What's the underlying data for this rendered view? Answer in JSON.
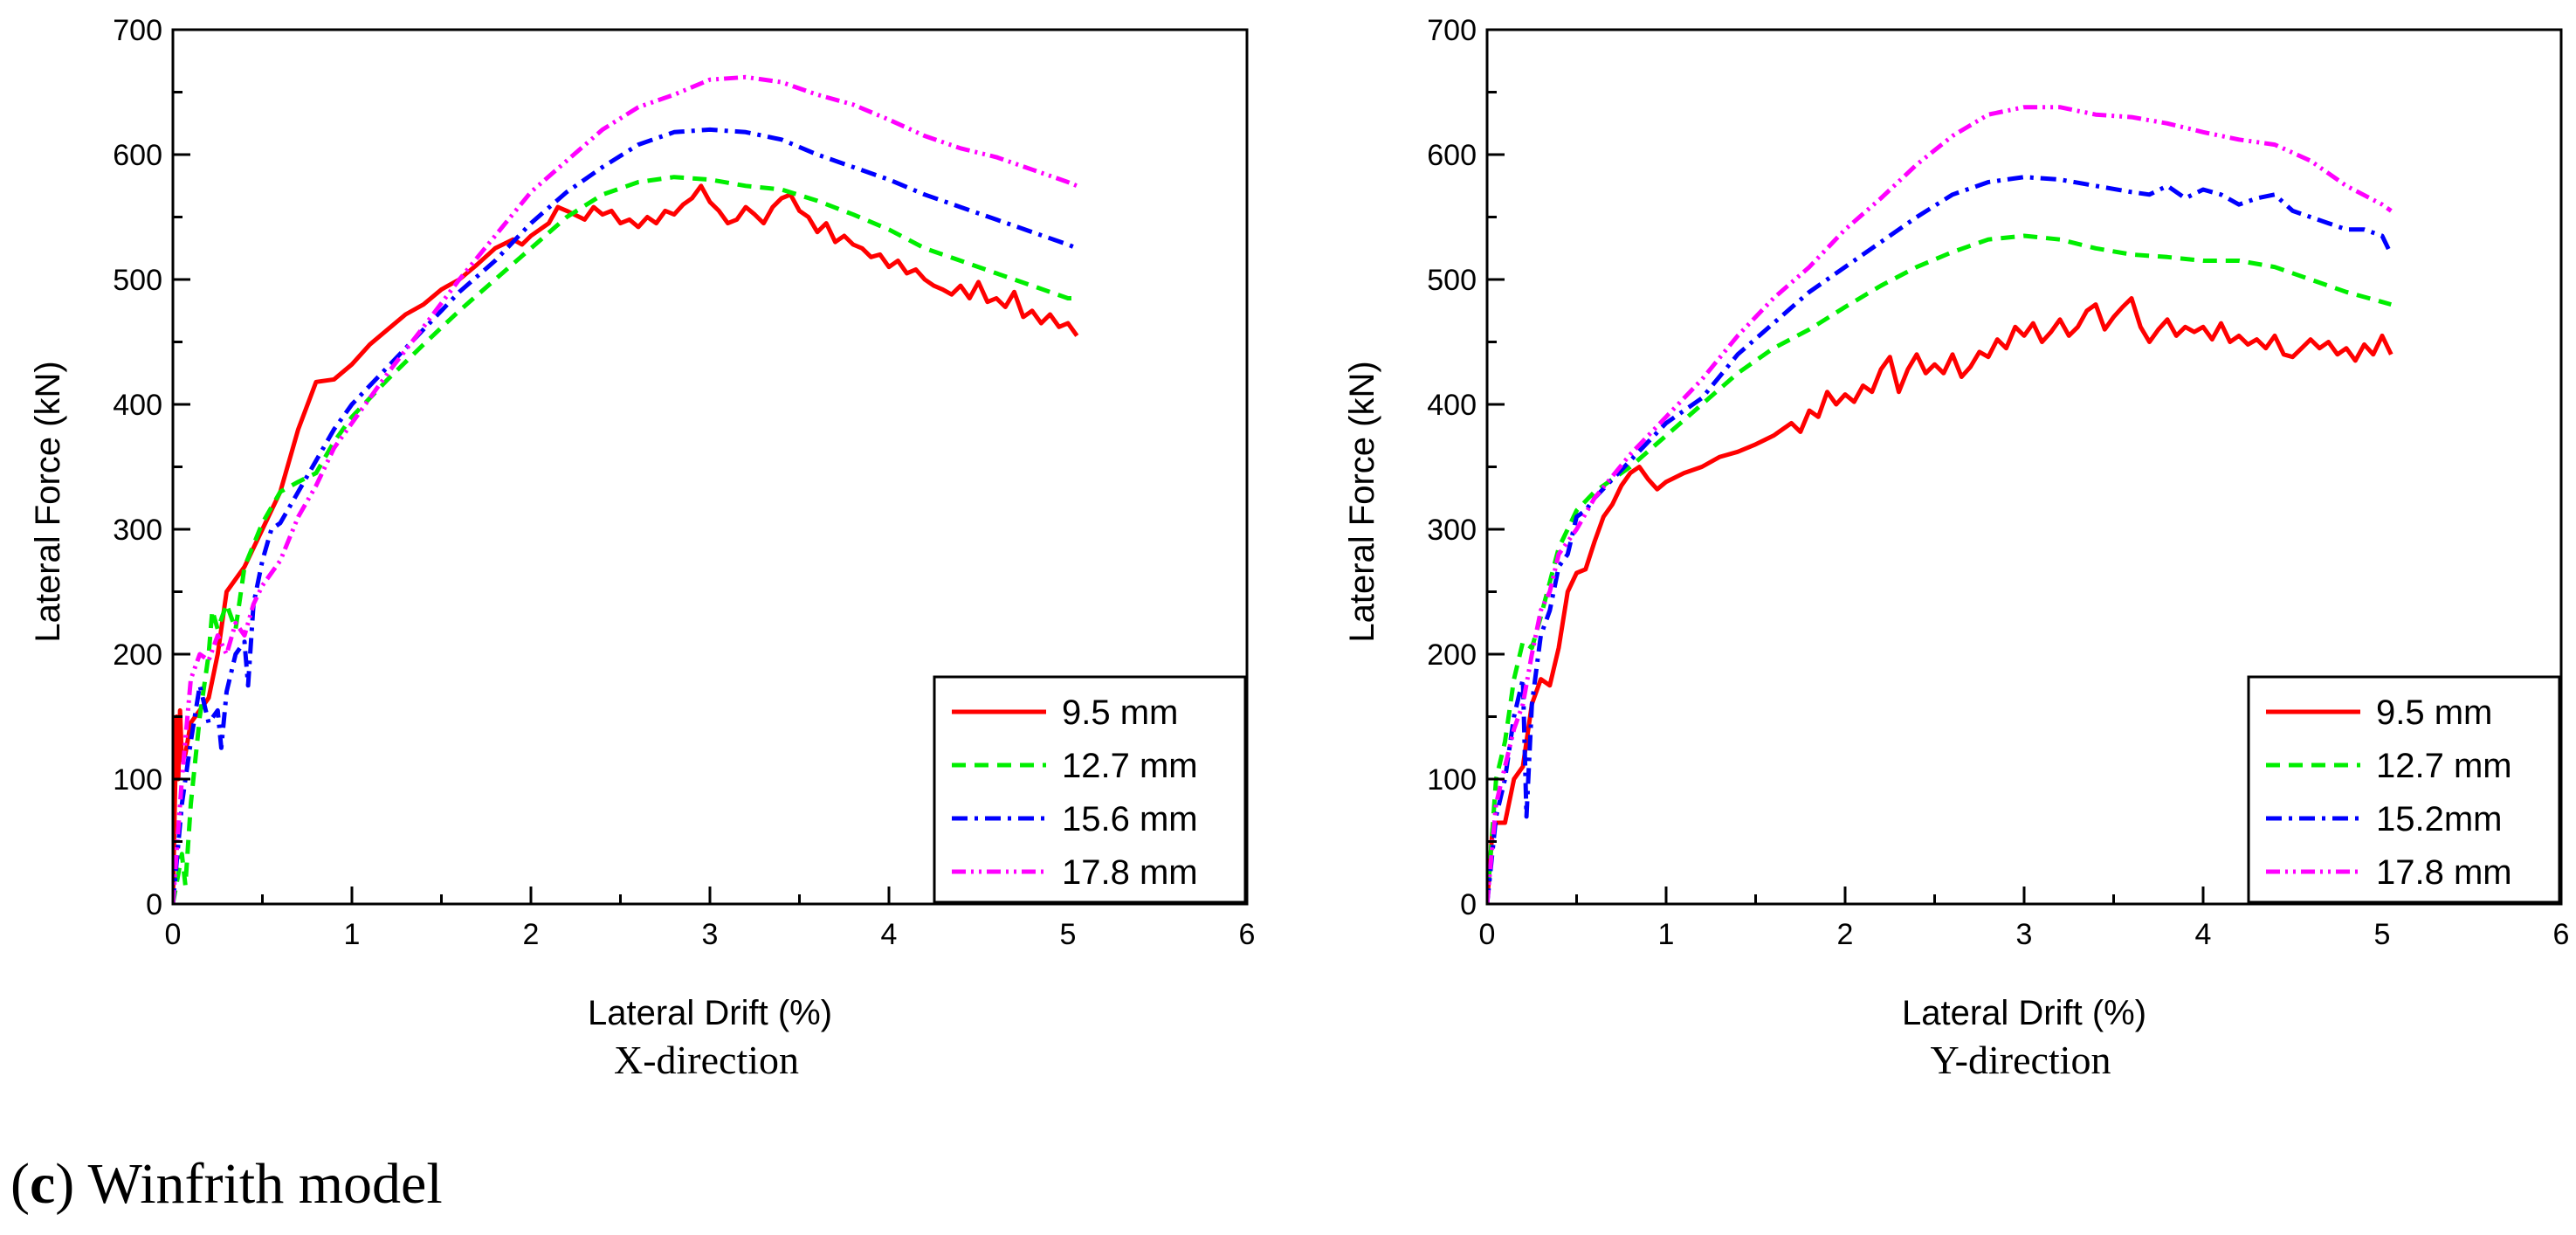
{
  "caption": {
    "open": "(",
    "letter": "c",
    "close": ")",
    "text": " Winfrith model"
  },
  "colors": {
    "axis": "#000000"
  },
  "chart_data": [
    {
      "type": "line",
      "title": "",
      "xlabel": "Lateral Drift (%)",
      "ylabel": "Lateral Force (kN)",
      "direction_label": "X-direction",
      "xlim": [
        0,
        6
      ],
      "ylim": [
        0,
        700
      ],
      "xticks": [
        0,
        1,
        2,
        3,
        4,
        5,
        6
      ],
      "yticks": [
        0,
        100,
        200,
        300,
        400,
        500,
        600,
        700
      ],
      "legend_position": "bottom-right",
      "series": [
        {
          "name": "9.5 mm",
          "color": "#ff0000",
          "dash": "solid",
          "x": [
            0,
            0.02,
            0.03,
            0.04,
            0.05,
            0.07,
            0.1,
            0.2,
            0.25,
            0.3,
            0.4,
            0.5,
            0.6,
            0.7,
            0.8,
            0.9,
            1.0,
            1.1,
            1.2,
            1.3,
            1.4,
            1.5,
            1.6,
            1.7,
            1.8,
            1.9,
            1.95,
            2.0,
            2.1,
            2.15,
            2.2,
            2.3,
            2.35,
            2.4,
            2.45,
            2.5,
            2.55,
            2.6,
            2.65,
            2.7,
            2.75,
            2.8,
            2.85,
            2.9,
            2.95,
            3.0,
            3.05,
            3.1,
            3.15,
            3.2,
            3.25,
            3.3,
            3.35,
            3.4,
            3.45,
            3.5,
            3.55,
            3.6,
            3.65,
            3.7,
            3.75,
            3.8,
            3.85,
            3.9,
            3.95,
            4.0,
            4.05,
            4.1,
            4.15,
            4.2,
            4.25,
            4.3,
            4.35,
            4.4,
            4.45,
            4.5,
            4.55,
            4.6,
            4.65,
            4.7,
            4.75,
            4.8,
            4.85,
            4.9,
            4.95,
            5.0,
            5.05
          ],
          "y": [
            0,
            150,
            100,
            155,
            115,
            120,
            145,
            165,
            200,
            250,
            270,
            300,
            330,
            380,
            418,
            420,
            432,
            448,
            460,
            472,
            480,
            492,
            500,
            512,
            525,
            532,
            528,
            535,
            545,
            558,
            555,
            548,
            558,
            552,
            555,
            545,
            548,
            542,
            550,
            545,
            555,
            552,
            560,
            565,
            575,
            562,
            555,
            545,
            548,
            558,
            552,
            545,
            558,
            565,
            568,
            555,
            550,
            538,
            545,
            530,
            535,
            528,
            525,
            518,
            520,
            510,
            515,
            505,
            508,
            500,
            495,
            492,
            488,
            495,
            485,
            498,
            482,
            485,
            478,
            490,
            470,
            475,
            465,
            472,
            462,
            465,
            455
          ]
        },
        {
          "name": "12.7 mm",
          "color": "#00ee00",
          "dash": "16,10",
          "x": [
            0,
            0.05,
            0.07,
            0.1,
            0.15,
            0.2,
            0.22,
            0.25,
            0.3,
            0.35,
            0.4,
            0.5,
            0.6,
            0.7,
            0.8,
            0.9,
            1.0,
            1.2,
            1.4,
            1.6,
            1.8,
            2.0,
            2.2,
            2.4,
            2.6,
            2.8,
            3.0,
            3.2,
            3.4,
            3.6,
            3.8,
            4.0,
            4.2,
            4.4,
            4.6,
            4.8,
            5.0,
            5.05
          ],
          "y": [
            0,
            40,
            15,
            80,
            150,
            200,
            235,
            220,
            240,
            220,
            270,
            305,
            330,
            338,
            345,
            370,
            390,
            420,
            448,
            475,
            500,
            525,
            550,
            568,
            578,
            582,
            580,
            575,
            572,
            563,
            552,
            540,
            525,
            515,
            505,
            495,
            485,
            485
          ]
        },
        {
          "name": "15.6 mm",
          "color": "#0000ff",
          "dash": "18,8,4,8",
          "x": [
            0,
            0.05,
            0.1,
            0.15,
            0.2,
            0.25,
            0.27,
            0.3,
            0.35,
            0.4,
            0.42,
            0.45,
            0.5,
            0.55,
            0.6,
            0.7,
            0.8,
            0.9,
            1.0,
            1.2,
            1.4,
            1.6,
            1.8,
            2.0,
            2.2,
            2.4,
            2.6,
            2.8,
            3.0,
            3.2,
            3.4,
            3.6,
            3.8,
            4.0,
            4.2,
            4.4,
            4.6,
            4.8,
            5.0,
            5.05
          ],
          "y": [
            0,
            80,
            130,
            175,
            145,
            155,
            125,
            170,
            200,
            210,
            175,
            240,
            275,
            300,
            305,
            330,
            355,
            380,
            400,
            430,
            460,
            490,
            515,
            545,
            570,
            590,
            608,
            618,
            620,
            618,
            612,
            600,
            590,
            580,
            568,
            558,
            548,
            538,
            528,
            525
          ]
        },
        {
          "name": "17.8 mm",
          "color": "#ff00ff",
          "dash": "16,6,3,6,3,6",
          "x": [
            0,
            0.05,
            0.1,
            0.15,
            0.2,
            0.25,
            0.3,
            0.35,
            0.4,
            0.45,
            0.5,
            0.6,
            0.7,
            0.8,
            0.9,
            1.0,
            1.2,
            1.4,
            1.6,
            1.8,
            2.0,
            2.2,
            2.4,
            2.6,
            2.8,
            3.0,
            3.2,
            3.4,
            3.6,
            3.8,
            4.0,
            4.2,
            4.4,
            4.6,
            4.8,
            5.0,
            5.05
          ],
          "y": [
            0,
            100,
            180,
            200,
            195,
            215,
            200,
            225,
            215,
            240,
            255,
            275,
            310,
            335,
            365,
            385,
            425,
            462,
            500,
            535,
            570,
            595,
            620,
            638,
            648,
            660,
            662,
            658,
            648,
            640,
            628,
            615,
            605,
            598,
            588,
            578,
            575
          ]
        }
      ]
    },
    {
      "type": "line",
      "title": "",
      "xlabel": "Lateral Drift (%)",
      "ylabel": "Lateral Force (kN)",
      "direction_label": "Y-direction",
      "xlim": [
        0,
        6
      ],
      "ylim": [
        0,
        700
      ],
      "xticks": [
        0,
        1,
        2,
        3,
        4,
        5,
        6
      ],
      "yticks": [
        0,
        100,
        200,
        300,
        400,
        500,
        600,
        700
      ],
      "legend_position": "bottom-right",
      "series": [
        {
          "name": "9.5 mm",
          "color": "#ff0000",
          "dash": "solid",
          "x": [
            0,
            0.03,
            0.05,
            0.1,
            0.15,
            0.2,
            0.25,
            0.3,
            0.35,
            0.4,
            0.45,
            0.5,
            0.55,
            0.6,
            0.65,
            0.7,
            0.75,
            0.8,
            0.85,
            0.9,
            0.95,
            1.0,
            1.1,
            1.2,
            1.3,
            1.4,
            1.5,
            1.6,
            1.7,
            1.75,
            1.8,
            1.85,
            1.9,
            1.95,
            2.0,
            2.05,
            2.1,
            2.15,
            2.2,
            2.25,
            2.3,
            2.35,
            2.4,
            2.45,
            2.5,
            2.55,
            2.6,
            2.65,
            2.7,
            2.75,
            2.8,
            2.85,
            2.9,
            2.95,
            3.0,
            3.05,
            3.1,
            3.15,
            3.2,
            3.25,
            3.3,
            3.35,
            3.4,
            3.45,
            3.5,
            3.55,
            3.6,
            3.65,
            3.7,
            3.75,
            3.8,
            3.85,
            3.9,
            3.95,
            4.0,
            4.05,
            4.1,
            4.15,
            4.2,
            4.25,
            4.3,
            4.35,
            4.4,
            4.45,
            4.5,
            4.55,
            4.6,
            4.65,
            4.7,
            4.75,
            4.8,
            4.85,
            4.9,
            4.95,
            5.0,
            5.05
          ],
          "y": [
            0,
            60,
            65,
            65,
            100,
            110,
            160,
            180,
            175,
            205,
            250,
            265,
            268,
            290,
            310,
            320,
            335,
            345,
            350,
            340,
            332,
            338,
            345,
            350,
            358,
            362,
            368,
            375,
            385,
            378,
            395,
            390,
            410,
            400,
            408,
            402,
            415,
            410,
            428,
            438,
            410,
            428,
            440,
            425,
            432,
            425,
            440,
            422,
            430,
            442,
            438,
            452,
            445,
            462,
            455,
            465,
            450,
            458,
            468,
            455,
            462,
            475,
            480,
            460,
            470,
            478,
            485,
            462,
            450,
            460,
            468,
            455,
            462,
            458,
            462,
            452,
            465,
            450,
            455,
            448,
            452,
            445,
            455,
            440,
            438,
            445,
            452,
            445,
            450,
            440,
            445,
            435,
            448,
            440,
            455,
            440
          ]
        },
        {
          "name": "12.7 mm",
          "color": "#00ee00",
          "dash": "16,10",
          "x": [
            0,
            0.05,
            0.1,
            0.15,
            0.2,
            0.25,
            0.3,
            0.4,
            0.5,
            0.6,
            0.8,
            1.0,
            1.2,
            1.4,
            1.6,
            1.8,
            2.0,
            2.2,
            2.4,
            2.6,
            2.8,
            3.0,
            3.2,
            3.4,
            3.6,
            3.8,
            4.0,
            4.2,
            4.4,
            4.6,
            4.8,
            5.0,
            5.05
          ],
          "y": [
            0,
            100,
            130,
            180,
            210,
            205,
            230,
            285,
            315,
            330,
            350,
            375,
            400,
            425,
            445,
            460,
            478,
            495,
            510,
            522,
            532,
            535,
            532,
            525,
            520,
            518,
            515,
            515,
            510,
            500,
            490,
            482,
            480
          ]
        },
        {
          "name": "15.2mm",
          "color": "#0000ff",
          "dash": "18,8,4,8",
          "x": [
            0,
            0.05,
            0.1,
            0.15,
            0.2,
            0.22,
            0.25,
            0.3,
            0.35,
            0.4,
            0.45,
            0.5,
            0.55,
            0.6,
            0.7,
            0.8,
            0.9,
            1.0,
            1.2,
            1.4,
            1.6,
            1.8,
            2.0,
            2.2,
            2.4,
            2.6,
            2.8,
            3.0,
            3.2,
            3.4,
            3.6,
            3.7,
            3.8,
            3.9,
            4.0,
            4.1,
            4.2,
            4.3,
            4.4,
            4.5,
            4.6,
            4.7,
            4.8,
            4.9,
            5.0,
            5.05
          ],
          "y": [
            0,
            70,
            100,
            150,
            180,
            70,
            160,
            215,
            235,
            270,
            280,
            310,
            315,
            325,
            340,
            355,
            370,
            385,
            405,
            440,
            465,
            490,
            510,
            530,
            550,
            568,
            578,
            582,
            580,
            575,
            570,
            568,
            575,
            565,
            572,
            568,
            560,
            565,
            568,
            555,
            550,
            545,
            540,
            540,
            535,
            520
          ]
        },
        {
          "name": "17.8 mm",
          "color": "#ff00ff",
          "dash": "16,6,3,6,3,6",
          "x": [
            0,
            0.05,
            0.1,
            0.15,
            0.2,
            0.25,
            0.3,
            0.35,
            0.4,
            0.5,
            0.6,
            0.8,
            1.0,
            1.2,
            1.4,
            1.6,
            1.8,
            2.0,
            2.2,
            2.4,
            2.6,
            2.8,
            3.0,
            3.2,
            3.4,
            3.6,
            3.8,
            4.0,
            4.2,
            4.4,
            4.6,
            4.8,
            5.0,
            5.05
          ],
          "y": [
            0,
            80,
            110,
            140,
            160,
            200,
            235,
            250,
            280,
            300,
            325,
            360,
            390,
            420,
            455,
            485,
            510,
            540,
            565,
            592,
            615,
            632,
            638,
            638,
            632,
            630,
            625,
            618,
            612,
            608,
            595,
            575,
            560,
            555
          ]
        }
      ]
    }
  ]
}
